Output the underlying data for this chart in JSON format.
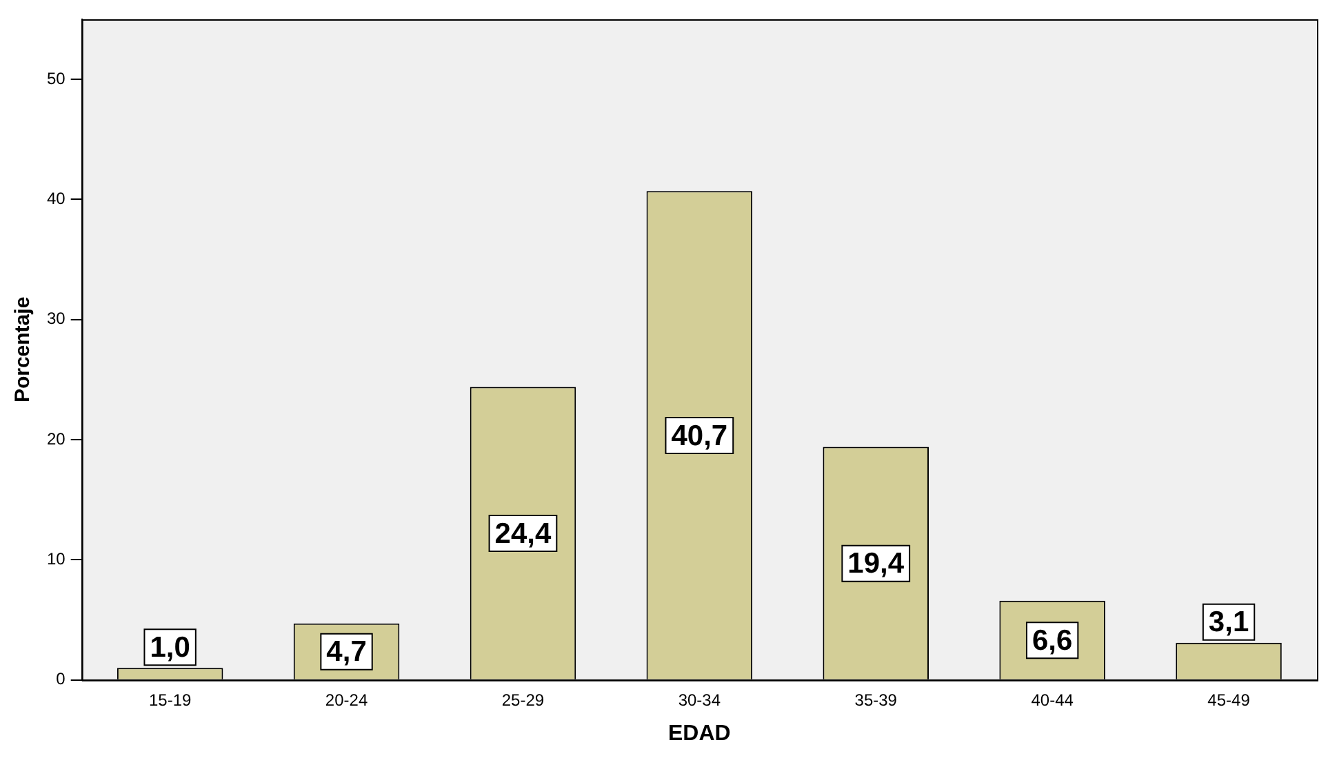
{
  "chart_data": {
    "type": "bar",
    "xlabel": "EDAD",
    "ylabel": "Porcentaje",
    "categories": [
      "15-19",
      "20-24",
      "25-29",
      "30-34",
      "35-39",
      "40-44",
      "45-49"
    ],
    "values": [
      1.0,
      4.7,
      24.4,
      40.7,
      19.4,
      6.6,
      3.1
    ],
    "value_labels": [
      "1,0",
      "4,7",
      "24,4",
      "40,7",
      "19,4",
      "6,6",
      "3,1"
    ],
    "color": "#d3ce97",
    "ylim": [
      0,
      55
    ],
    "yticks": [
      0,
      10,
      20,
      30,
      40,
      50
    ],
    "grid": false,
    "legend": false
  }
}
